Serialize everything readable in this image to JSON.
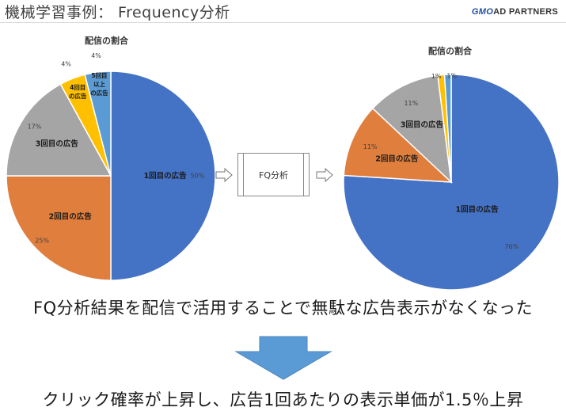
{
  "header": {
    "title": "機械学習事例： Frequency分析",
    "logo_gmo": "GMO",
    "logo_rest": "AD PARTNERS"
  },
  "process": {
    "box_label": "FQ分析"
  },
  "result": {
    "line1": "FQ分析結果を配信で活用することで無駄な広告表示がなくなった",
    "line2": "クリック確率が上昇し、広告1回あたりの表示単価が1.5％上昇"
  },
  "colors": {
    "blue": "#4472C4",
    "orange": "#E07F3D",
    "gray": "#A5A5A5",
    "yellow": "#FFC000",
    "lightblue": "#5B9BD5",
    "arrow": "#5B9BD5"
  },
  "chart_data": [
    {
      "type": "pie",
      "title": "配信の割合",
      "slices": [
        {
          "label": "1回目の広告",
          "value": 50,
          "pct_label": "50%",
          "color": "#4472C4"
        },
        {
          "label": "2回目の広告",
          "value": 25,
          "pct_label": "25%",
          "color": "#E07F3D"
        },
        {
          "label": "3回目の広告",
          "value": 17,
          "pct_label": "17%",
          "color": "#A5A5A5"
        },
        {
          "label": "4回目の広告",
          "value": 4,
          "pct_label": "4%",
          "color": "#FFC000"
        },
        {
          "label": "5回目以上の広告",
          "value": 4,
          "pct_label": "4%",
          "color": "#5B9BD5"
        }
      ]
    },
    {
      "type": "pie",
      "title": "配信の割合",
      "slices": [
        {
          "label": "1回目の広告",
          "value": 76,
          "pct_label": "76%",
          "color": "#4472C4"
        },
        {
          "label": "2回目の広告",
          "value": 11,
          "pct_label": "11%",
          "color": "#E07F3D"
        },
        {
          "label": "3回目の広告",
          "value": 11,
          "pct_label": "11%",
          "color": "#A5A5A5"
        },
        {
          "label": "",
          "value": 1,
          "pct_label": "1%",
          "color": "#FFC000"
        },
        {
          "label": "",
          "value": 1,
          "pct_label": "1%",
          "color": "#5B9BD5"
        }
      ]
    }
  ]
}
